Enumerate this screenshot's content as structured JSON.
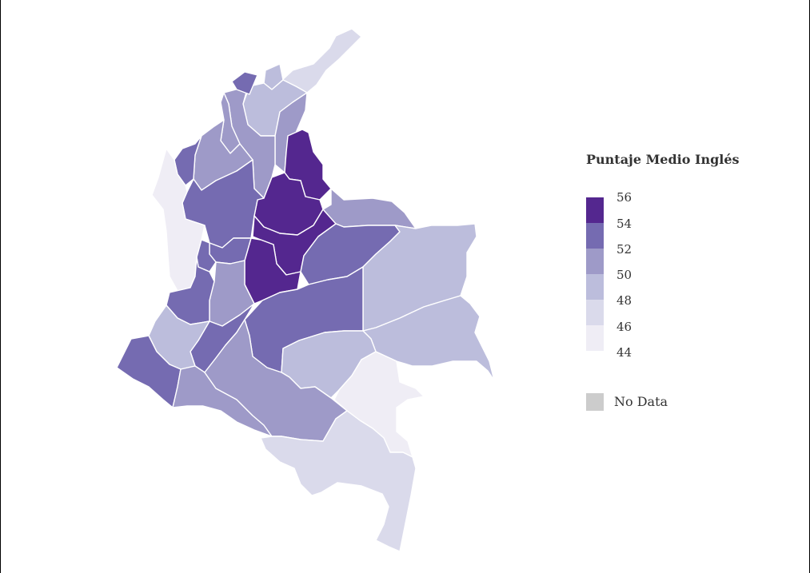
{
  "chart_data": {
    "type": "choropleth",
    "legend": {
      "title": "Puntaje Medio Inglés",
      "ticks": [
        "56",
        "54",
        "52",
        "50",
        "48",
        "46",
        "44"
      ],
      "bins": [
        {
          "range": [
            54,
            56
          ],
          "color": "#54278f"
        },
        {
          "range": [
            52,
            54
          ],
          "color": "#756bb1"
        },
        {
          "range": [
            50,
            52
          ],
          "color": "#9e9ac8"
        },
        {
          "range": [
            48,
            50
          ],
          "color": "#bcbddc"
        },
        {
          "range": [
            46,
            48
          ],
          "color": "#dadaeb"
        },
        {
          "range": [
            44,
            46
          ],
          "color": "#efedf5"
        }
      ],
      "no_data_label": "No Data",
      "no_data_color": "#cccccc"
    }
  }
}
